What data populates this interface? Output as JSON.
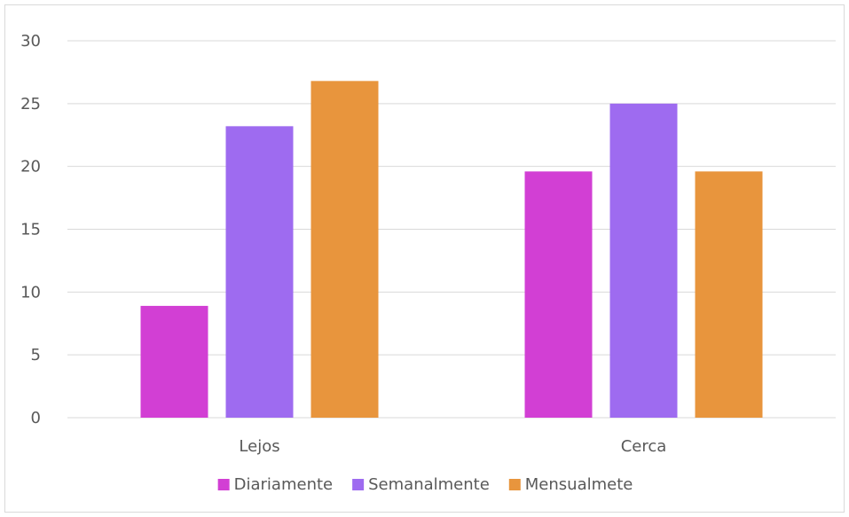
{
  "chart_data": {
    "type": "bar",
    "categories": [
      "Lejos",
      "Cerca"
    ],
    "series": [
      {
        "name": "Diariamente",
        "values": [
          8.9,
          19.6
        ],
        "color": "#d23fd4"
      },
      {
        "name": "Semanalmente",
        "values": [
          23.2,
          25.0
        ],
        "color": "#9e6bf0"
      },
      {
        "name": "Mensualmete",
        "values": [
          26.8,
          19.6
        ],
        "color": "#e8953d"
      }
    ],
    "title": "",
    "xlabel": "",
    "ylabel": "",
    "ylim": [
      0,
      30
    ],
    "yticks": [
      0,
      5,
      10,
      15,
      20,
      25,
      30
    ],
    "grid": true,
    "legend_position": "bottom"
  }
}
